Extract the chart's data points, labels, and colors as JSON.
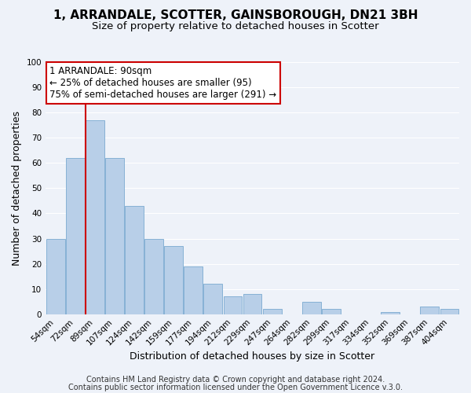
{
  "title": "1, ARRANDALE, SCOTTER, GAINSBOROUGH, DN21 3BH",
  "subtitle": "Size of property relative to detached houses in Scotter",
  "xlabel": "Distribution of detached houses by size in Scotter",
  "ylabel": "Number of detached properties",
  "bar_color": "#b8cfe8",
  "bar_edge_color": "#7aaad0",
  "bins": [
    "54sqm",
    "72sqm",
    "89sqm",
    "107sqm",
    "124sqm",
    "142sqm",
    "159sqm",
    "177sqm",
    "194sqm",
    "212sqm",
    "229sqm",
    "247sqm",
    "264sqm",
    "282sqm",
    "299sqm",
    "317sqm",
    "334sqm",
    "352sqm",
    "369sqm",
    "387sqm",
    "404sqm"
  ],
  "values": [
    30,
    62,
    77,
    62,
    43,
    30,
    27,
    19,
    12,
    7,
    8,
    2,
    0,
    5,
    2,
    0,
    0,
    1,
    0,
    3,
    2
  ],
  "vline_idx": 2,
  "vline_color": "#cc0000",
  "ylim": [
    0,
    100
  ],
  "yticks": [
    0,
    10,
    20,
    30,
    40,
    50,
    60,
    70,
    80,
    90,
    100
  ],
  "annotation_line1": "1 ARRANDALE: 90sqm",
  "annotation_line2": "← 25% of detached houses are smaller (95)",
  "annotation_line3": "75% of semi-detached houses are larger (291) →",
  "annotation_box_color": "#ffffff",
  "annotation_border_color": "#cc0000",
  "footer1": "Contains HM Land Registry data © Crown copyright and database right 2024.",
  "footer2": "Contains public sector information licensed under the Open Government Licence v.3.0.",
  "bg_color": "#eef2f9",
  "grid_color": "#ffffff",
  "title_fontsize": 11,
  "subtitle_fontsize": 9.5,
  "axis_label_fontsize": 9,
  "tick_fontsize": 7.5,
  "annotation_fontsize": 8.5,
  "footer_fontsize": 7
}
